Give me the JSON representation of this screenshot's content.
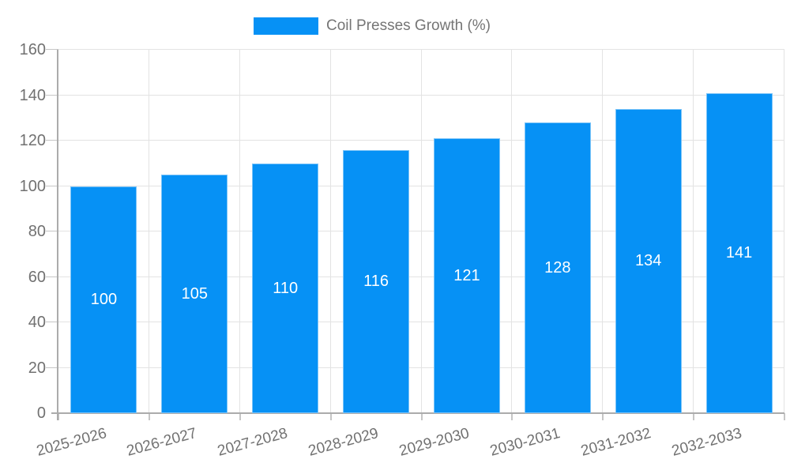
{
  "chart_data": {
    "type": "bar",
    "title": "",
    "legend_label": "Coil Presses Growth (%)",
    "legend_position": "top",
    "categories": [
      "2025-2026",
      "2026-2027",
      "2027-2028",
      "2028-2029",
      "2029-2030",
      "2030-2031",
      "2031-2032",
      "2032-2033"
    ],
    "values": [
      100,
      105,
      110,
      116,
      121,
      128,
      134,
      141
    ],
    "xlabel": "",
    "ylabel": "",
    "ylim": [
      0,
      160
    ],
    "yticks": [
      0,
      20,
      40,
      60,
      80,
      100,
      120,
      140,
      160
    ],
    "grid": true,
    "value_labels_inside_bars": true,
    "colors": {
      "bar_fill": "#0691F5",
      "bar_border": "#7CC4F8",
      "grid_line": "#E3E3E3",
      "axis_line": "#ABABAB",
      "tick_mark": "#C6C6C6",
      "axis_text": "#717171",
      "legend_text": "#757575",
      "value_text": "#FFFFFF",
      "background": "#FFFFFF"
    }
  }
}
